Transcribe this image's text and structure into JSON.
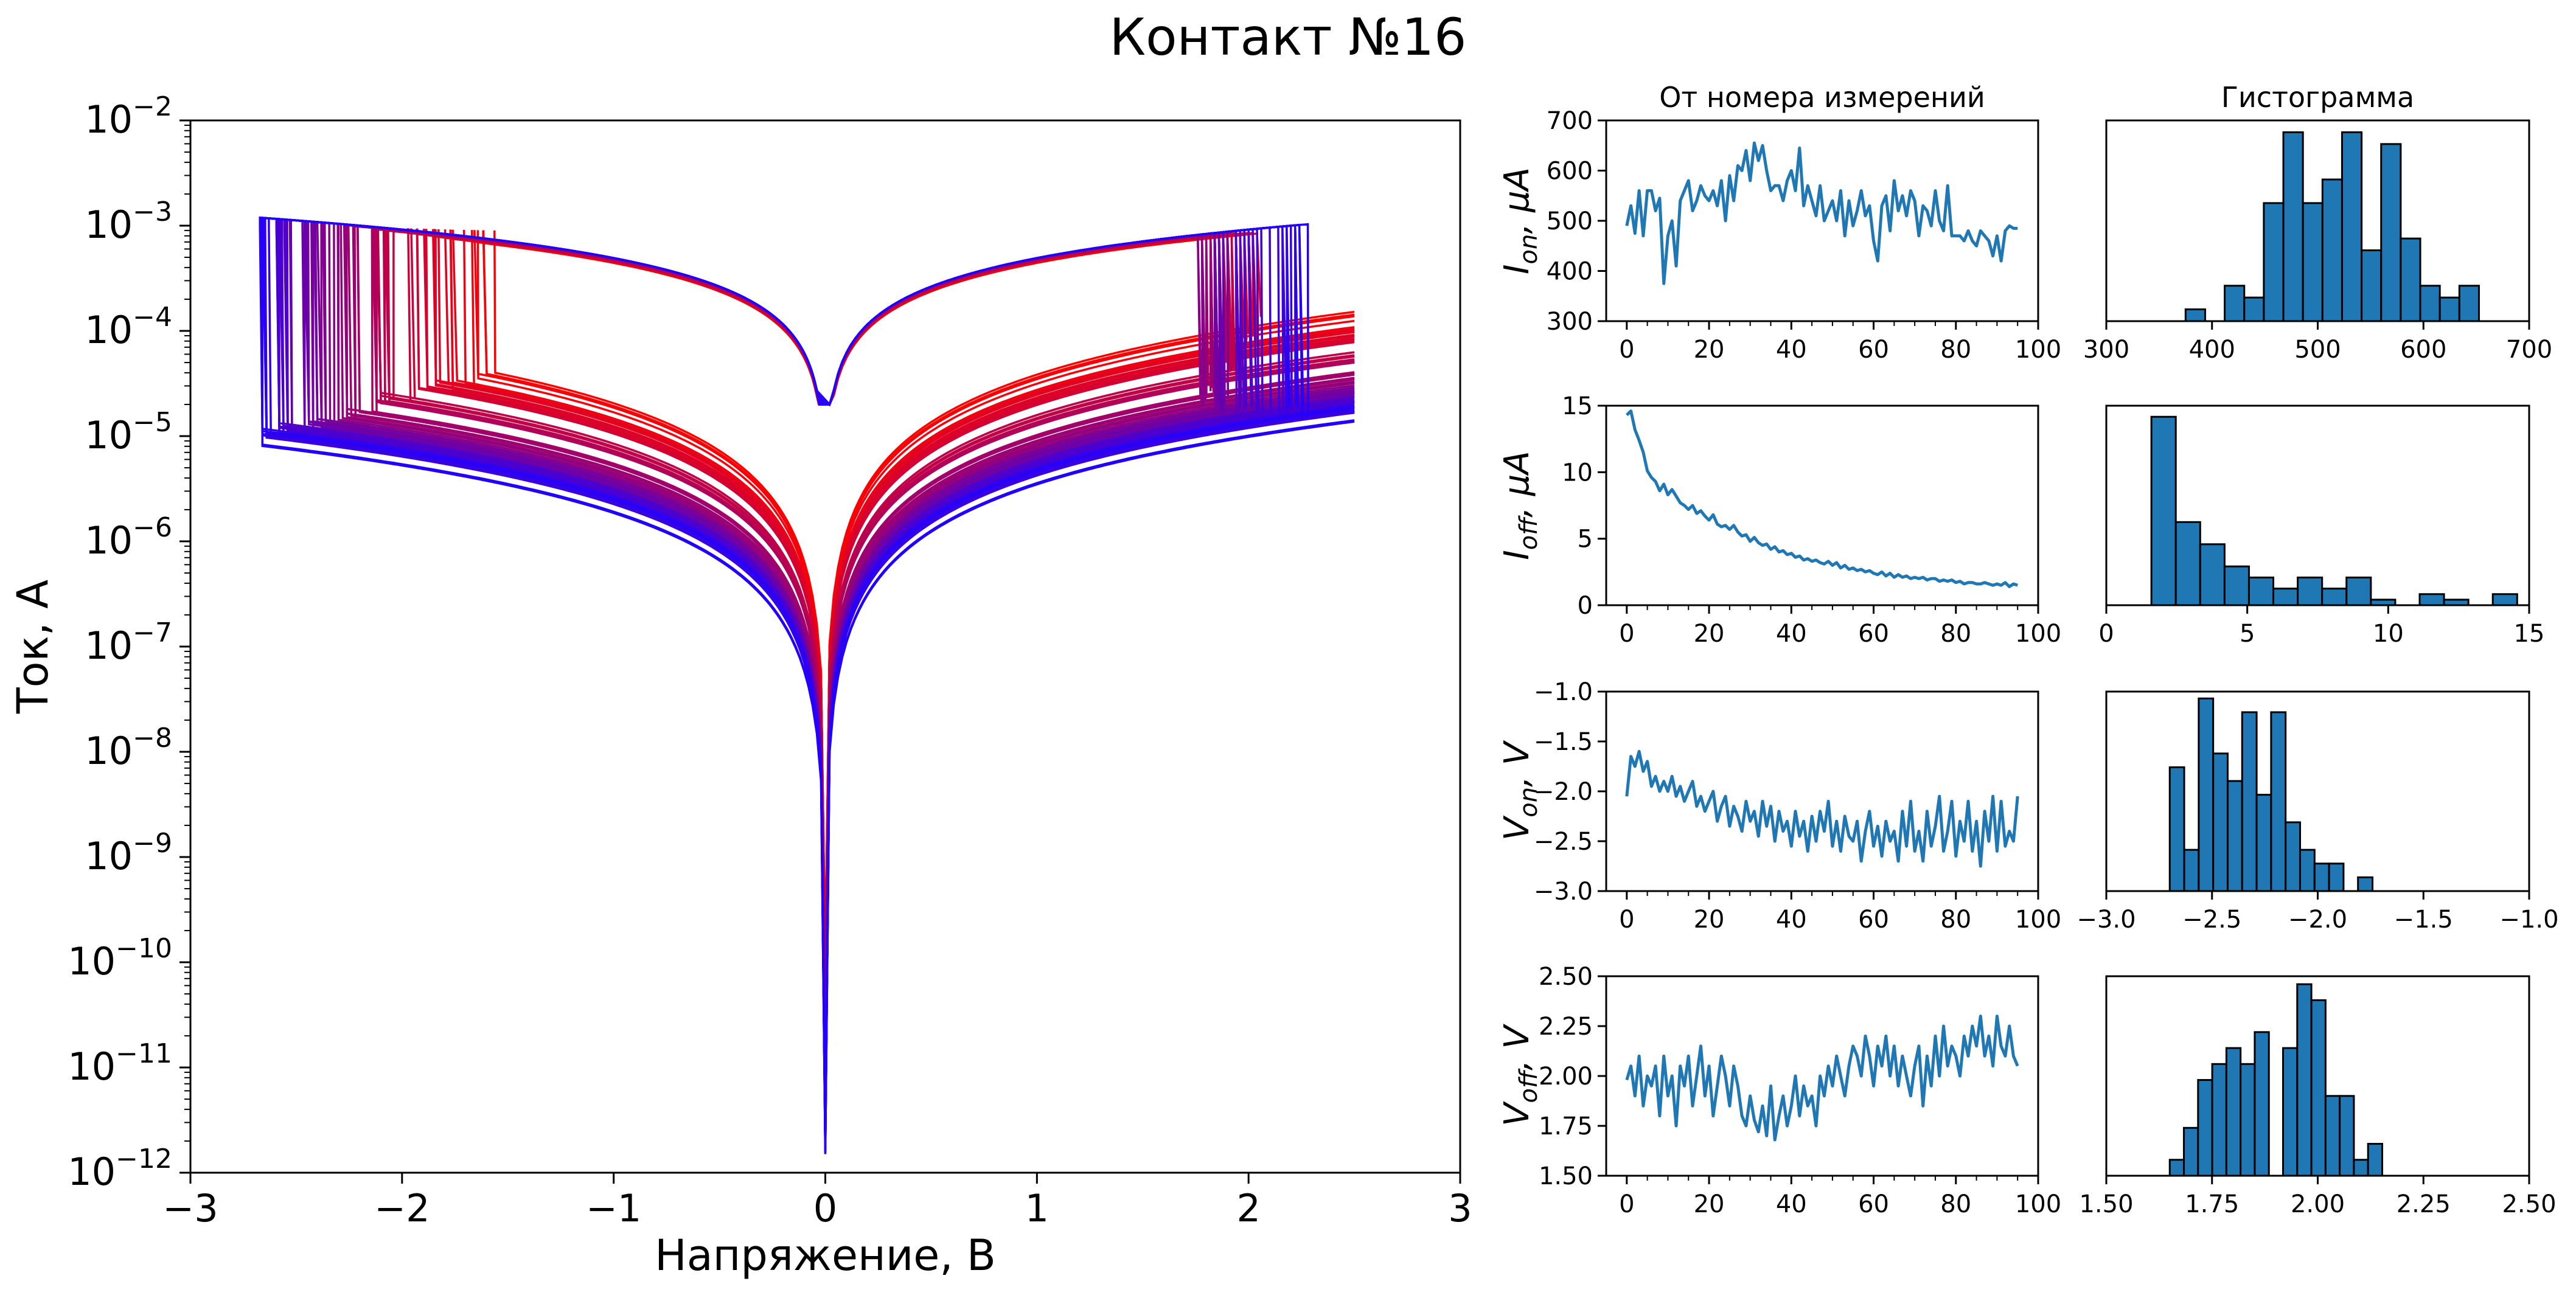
{
  "figure": {
    "title": "Контакт №16"
  },
  "chart_data": [
    {
      "id": "iv",
      "type": "line",
      "xlabel": "Напряжение, В",
      "ylabel": "Ток, А",
      "xlim": [
        -3,
        3
      ],
      "ylim": [
        1e-12,
        0.01
      ],
      "yscale": "log",
      "xticks": [
        "−3",
        "−2",
        "−1",
        "0",
        "1",
        "2",
        "3"
      ],
      "xtick_values": [
        -3,
        -2,
        -1,
        0,
        1,
        2,
        3
      ],
      "ytick_exponents": [
        -12,
        -11,
        -10,
        -9,
        -8,
        -7,
        -6,
        -5,
        -4,
        -3,
        -2
      ],
      "ytick_base": "10",
      "colormap": [
        "#ff0000",
        "#2200ff"
      ],
      "num_curves": 96,
      "series": [
        {
          "name": "",
          "v_on": -1.6,
          "v_off": 2.05,
          "i_on": 0.0009,
          "i_off": 0.00014,
          "i_min": 1e-10
        },
        {
          "name": "",
          "v_on": -2.05,
          "v_off": 1.9,
          "i_on": 0.00095,
          "i_off": 6e-05,
          "i_min": 3e-11
        },
        {
          "name": "",
          "v_on": -2.3,
          "v_off": 1.8,
          "i_on": 0.001,
          "i_off": 3e-05,
          "i_min": 8e-12
        },
        {
          "name": "",
          "v_on": -2.55,
          "v_off": 1.95,
          "i_on": 0.001,
          "i_off": 2.2e-05,
          "i_min": 3e-12
        },
        {
          "name": "",
          "v_on": -2.7,
          "v_off": 2.3,
          "i_on": 0.001,
          "i_off": 1.6e-05,
          "i_min": 1.5e-12
        }
      ]
    },
    {
      "id": "ion_vs_n",
      "type": "line",
      "title": "От номера измерений",
      "ylabel_main": "I",
      "ylabel_sub": "on",
      "ylabel_unit": ", μA",
      "xlim": [
        -5,
        100
      ],
      "ylim": [
        300,
        700
      ],
      "xticks": [
        "0",
        "20",
        "40",
        "60",
        "80",
        "100"
      ],
      "xtick_values": [
        0,
        20,
        40,
        60,
        80,
        100
      ],
      "yticks": [
        "300",
        "400",
        "500",
        "600",
        "700"
      ],
      "ytick_values": [
        300,
        400,
        500,
        600,
        700
      ],
      "x": [
        0,
        1,
        2,
        3,
        4,
        5,
        6,
        7,
        8,
        9,
        10,
        11,
        12,
        13,
        14,
        15,
        16,
        17,
        18,
        19,
        20,
        21,
        22,
        23,
        24,
        25,
        26,
        27,
        28,
        29,
        30,
        31,
        32,
        33,
        34,
        35,
        36,
        37,
        38,
        39,
        40,
        41,
        42,
        43,
        44,
        45,
        46,
        47,
        48,
        49,
        50,
        51,
        52,
        53,
        54,
        55,
        56,
        57,
        58,
        59,
        60,
        61,
        62,
        63,
        64,
        65,
        66,
        67,
        68,
        69,
        70,
        71,
        72,
        73,
        74,
        75,
        76,
        77,
        78,
        79,
        80,
        81,
        82,
        83,
        84,
        85,
        86,
        87,
        88,
        89,
        90,
        91,
        92,
        93,
        94,
        95
      ],
      "values": [
        490,
        530,
        475,
        560,
        470,
        560,
        560,
        520,
        545,
        375,
        470,
        500,
        410,
        540,
        560,
        580,
        520,
        540,
        570,
        550,
        540,
        560,
        530,
        580,
        500,
        590,
        540,
        610,
        600,
        640,
        580,
        655,
        620,
        650,
        600,
        560,
        570,
        570,
        540,
        580,
        600,
        560,
        645,
        530,
        570,
        540,
        510,
        570,
        500,
        520,
        540,
        500,
        560,
        470,
        540,
        490,
        520,
        560,
        510,
        530,
        460,
        420,
        530,
        550,
        480,
        580,
        520,
        550,
        510,
        560,
        540,
        470,
        530,
        520,
        490,
        560,
        500,
        480,
        570,
        470,
        470,
        470,
        460,
        480,
        460,
        450,
        480,
        470,
        460,
        430,
        470,
        420,
        480,
        490,
        485,
        485
      ]
    },
    {
      "id": "ion_hist",
      "type": "bar",
      "title": "Гистограмма",
      "xlim": [
        300,
        700
      ],
      "xticks": [
        "300",
        "400",
        "500",
        "600",
        "700"
      ],
      "xtick_values": [
        300,
        400,
        500,
        600,
        700
      ],
      "bin_left": 375,
      "bin_width": 18.5,
      "values": [
        1,
        0,
        3,
        2,
        10,
        16,
        10,
        12,
        16,
        6,
        15,
        7,
        3,
        2,
        3
      ],
      "ymax": 17
    },
    {
      "id": "ioff_vs_n",
      "type": "line",
      "ylabel_main": "I",
      "ylabel_sub": "off",
      "ylabel_unit": ", μA",
      "xlim": [
        -5,
        100
      ],
      "ylim": [
        0,
        15
      ],
      "xticks": [
        "0",
        "20",
        "40",
        "60",
        "80",
        "100"
      ],
      "xtick_values": [
        0,
        20,
        40,
        60,
        80,
        100
      ],
      "yticks": [
        "0",
        "5",
        "10",
        "15"
      ],
      "ytick_values": [
        0,
        5,
        10,
        15
      ],
      "x": [
        0,
        1,
        2,
        3,
        4,
        5,
        6,
        7,
        8,
        9,
        10,
        11,
        12,
        13,
        14,
        15,
        16,
        17,
        18,
        19,
        20,
        21,
        22,
        23,
        24,
        25,
        26,
        27,
        28,
        29,
        30,
        31,
        32,
        33,
        34,
        35,
        36,
        37,
        38,
        39,
        40,
        41,
        42,
        43,
        44,
        45,
        46,
        47,
        48,
        49,
        50,
        51,
        52,
        53,
        54,
        55,
        56,
        57,
        58,
        59,
        60,
        61,
        62,
        63,
        64,
        65,
        66,
        67,
        68,
        69,
        70,
        71,
        72,
        73,
        74,
        75,
        76,
        77,
        78,
        79,
        80,
        81,
        82,
        83,
        84,
        85,
        86,
        87,
        88,
        89,
        90,
        91,
        92,
        93,
        94,
        95
      ],
      "values": [
        14.3,
        14.6,
        13.2,
        12.4,
        11.5,
        10.1,
        9.6,
        9.3,
        8.6,
        9.1,
        8.3,
        8.7,
        8.2,
        7.7,
        7.5,
        7.2,
        7.5,
        6.9,
        7.1,
        6.7,
        6.4,
        6.8,
        6.1,
        5.9,
        6.0,
        5.7,
        6.0,
        5.5,
        5.2,
        5.3,
        4.8,
        5.1,
        4.7,
        4.5,
        4.6,
        4.2,
        4.4,
        4.0,
        4.1,
        3.8,
        3.9,
        3.6,
        3.7,
        3.4,
        3.5,
        3.3,
        3.4,
        3.2,
        3.1,
        3.3,
        3.0,
        3.2,
        2.8,
        3.0,
        2.7,
        2.8,
        2.6,
        2.7,
        2.5,
        2.6,
        2.4,
        2.3,
        2.5,
        2.2,
        2.4,
        2.1,
        2.3,
        2.1,
        2.2,
        2.0,
        2.1,
        2.0,
        2.1,
        1.9,
        2.0,
        2.0,
        1.8,
        1.9,
        1.8,
        1.9,
        1.7,
        1.8,
        1.6,
        1.7,
        1.7,
        1.6,
        1.6,
        1.7,
        1.6,
        1.5,
        1.6,
        1.5,
        1.7,
        1.4,
        1.6,
        1.5
      ]
    },
    {
      "id": "ioff_hist",
      "type": "bar",
      "xlim": [
        0,
        15
      ],
      "xticks": [
        "0",
        "5",
        "10",
        "15"
      ],
      "xtick_values": [
        0,
        5,
        10,
        15
      ],
      "bin_left": 1.6,
      "bin_width": 0.865,
      "values": [
        34,
        15,
        11,
        7,
        5,
        3,
        5,
        3,
        5,
        1,
        0,
        2,
        1,
        0,
        2
      ],
      "ymax": 36
    },
    {
      "id": "von_vs_n",
      "type": "line",
      "ylabel_main": "V",
      "ylabel_sub": "on",
      "ylabel_unit": ", V",
      "xlim": [
        -5,
        100
      ],
      "ylim": [
        -3.0,
        -1.0
      ],
      "xticks": [
        "0",
        "20",
        "40",
        "60",
        "80",
        "100"
      ],
      "xtick_values": [
        0,
        20,
        40,
        60,
        80,
        100
      ],
      "yticks": [
        "−3.0",
        "−2.5",
        "−2.0",
        "−1.5",
        "−1.0"
      ],
      "ytick_values": [
        -3.0,
        -2.5,
        -2.0,
        -1.5,
        -1.0
      ],
      "x": [
        0,
        1,
        2,
        3,
        4,
        5,
        6,
        7,
        8,
        9,
        10,
        11,
        12,
        13,
        14,
        15,
        16,
        17,
        18,
        19,
        20,
        21,
        22,
        23,
        24,
        25,
        26,
        27,
        28,
        29,
        30,
        31,
        32,
        33,
        34,
        35,
        36,
        37,
        38,
        39,
        40,
        41,
        42,
        43,
        44,
        45,
        46,
        47,
        48,
        49,
        50,
        51,
        52,
        53,
        54,
        55,
        56,
        57,
        58,
        59,
        60,
        61,
        62,
        63,
        64,
        65,
        66,
        67,
        68,
        69,
        70,
        71,
        72,
        73,
        74,
        75,
        76,
        77,
        78,
        79,
        80,
        81,
        82,
        83,
        84,
        85,
        86,
        87,
        88,
        89,
        90,
        91,
        92,
        93,
        94,
        95
      ],
      "values": [
        -2.05,
        -1.65,
        -1.75,
        -1.6,
        -1.8,
        -1.7,
        -1.95,
        -1.85,
        -2.0,
        -1.9,
        -2.0,
        -1.85,
        -2.05,
        -1.95,
        -2.1,
        -2.0,
        -1.9,
        -2.15,
        -2.05,
        -2.2,
        -2.1,
        -2.0,
        -2.3,
        -2.15,
        -2.05,
        -2.35,
        -2.15,
        -2.25,
        -2.4,
        -2.1,
        -2.3,
        -2.2,
        -2.45,
        -2.1,
        -2.35,
        -2.15,
        -2.5,
        -2.2,
        -2.4,
        -2.3,
        -2.55,
        -2.2,
        -2.45,
        -2.3,
        -2.6,
        -2.25,
        -2.5,
        -2.2,
        -2.4,
        -2.1,
        -2.55,
        -2.3,
        -2.6,
        -2.25,
        -2.45,
        -2.5,
        -2.3,
        -2.7,
        -2.4,
        -2.2,
        -2.55,
        -2.35,
        -2.65,
        -2.3,
        -2.5,
        -2.4,
        -2.7,
        -2.2,
        -2.55,
        -2.1,
        -2.6,
        -2.4,
        -2.7,
        -2.2,
        -2.55,
        -2.35,
        -2.05,
        -2.6,
        -2.4,
        -2.1,
        -2.65,
        -2.3,
        -2.5,
        -2.1,
        -2.6,
        -2.3,
        -2.75,
        -2.2,
        -2.5,
        -2.05,
        -2.6,
        -2.1,
        -2.55,
        -2.4,
        -2.5,
        -2.05
      ]
    },
    {
      "id": "von_hist",
      "type": "bar",
      "xlim": [
        -3.0,
        -1.0
      ],
      "xticks": [
        "−3.0",
        "−2.5",
        "−2.0",
        "−1.5",
        "−1.0"
      ],
      "xtick_values": [
        -3.0,
        -2.5,
        -2.0,
        -1.5,
        -1.0
      ],
      "bin_left": -2.7,
      "bin_width": 0.0685,
      "values": [
        9,
        3,
        14,
        10,
        8,
        13,
        7,
        13,
        5,
        3,
        2,
        2,
        0,
        1
      ],
      "ymax": 14.5
    },
    {
      "id": "voff_vs_n",
      "type": "line",
      "ylabel_main": "V",
      "ylabel_sub": "off",
      "ylabel_unit": ", V",
      "xlim": [
        -5,
        100
      ],
      "ylim": [
        1.5,
        2.5
      ],
      "xticks": [
        "0",
        "20",
        "40",
        "60",
        "80",
        "100"
      ],
      "xtick_values": [
        0,
        20,
        40,
        60,
        80,
        100
      ],
      "yticks": [
        "1.50",
        "1.75",
        "2.00",
        "2.25",
        "2.50"
      ],
      "ytick_values": [
        1.5,
        1.75,
        2.0,
        2.25,
        2.5
      ],
      "x": [
        0,
        1,
        2,
        3,
        4,
        5,
        6,
        7,
        8,
        9,
        10,
        11,
        12,
        13,
        14,
        15,
        16,
        17,
        18,
        19,
        20,
        21,
        22,
        23,
        24,
        25,
        26,
        27,
        28,
        29,
        30,
        31,
        32,
        33,
        34,
        35,
        36,
        37,
        38,
        39,
        40,
        41,
        42,
        43,
        44,
        45,
        46,
        47,
        48,
        49,
        50,
        51,
        52,
        53,
        54,
        55,
        56,
        57,
        58,
        59,
        60,
        61,
        62,
        63,
        64,
        65,
        66,
        67,
        68,
        69,
        70,
        71,
        72,
        73,
        74,
        75,
        76,
        77,
        78,
        79,
        80,
        81,
        82,
        83,
        84,
        85,
        86,
        87,
        88,
        89,
        90,
        91,
        92,
        93,
        94,
        95
      ],
      "values": [
        1.98,
        2.05,
        1.9,
        2.1,
        1.85,
        2.0,
        1.95,
        2.05,
        1.8,
        2.1,
        1.9,
        2.0,
        1.75,
        2.05,
        1.95,
        2.1,
        1.85,
        2.0,
        2.15,
        1.9,
        2.05,
        1.8,
        1.95,
        2.1,
        2.0,
        1.85,
        2.05,
        1.95,
        1.8,
        1.75,
        1.9,
        1.78,
        1.72,
        1.85,
        1.7,
        1.95,
        1.68,
        1.8,
        1.9,
        1.75,
        1.85,
        2.0,
        1.8,
        1.95,
        1.85,
        1.9,
        1.75,
        2.0,
        1.9,
        2.05,
        1.95,
        2.1,
        2.0,
        1.9,
        2.05,
        2.15,
        2.1,
        2.0,
        2.2,
        2.1,
        1.95,
        2.15,
        2.05,
        2.2,
        2.0,
        2.15,
        1.95,
        2.1,
        2.0,
        1.9,
        2.05,
        2.15,
        1.85,
        2.1,
        1.95,
        2.2,
        2.0,
        2.25,
        2.05,
        2.15,
        2.1,
        2.0,
        2.2,
        2.1,
        2.25,
        2.15,
        2.3,
        2.1,
        2.2,
        2.05,
        2.3,
        2.15,
        2.1,
        2.25,
        2.1,
        2.05
      ]
    },
    {
      "id": "voff_hist",
      "type": "bar",
      "xlim": [
        1.5,
        2.5
      ],
      "xticks": [
        "1.50",
        "1.75",
        "2.00",
        "2.25",
        "2.50"
      ],
      "xtick_values": [
        1.5,
        1.75,
        2.0,
        2.25,
        2.5
      ],
      "bin_left": 1.65,
      "bin_width": 0.0335,
      "values": [
        1,
        3,
        6,
        7,
        8,
        7,
        9,
        0,
        8,
        12,
        11,
        5,
        5,
        1,
        2
      ],
      "ymax": 12.5
    }
  ]
}
